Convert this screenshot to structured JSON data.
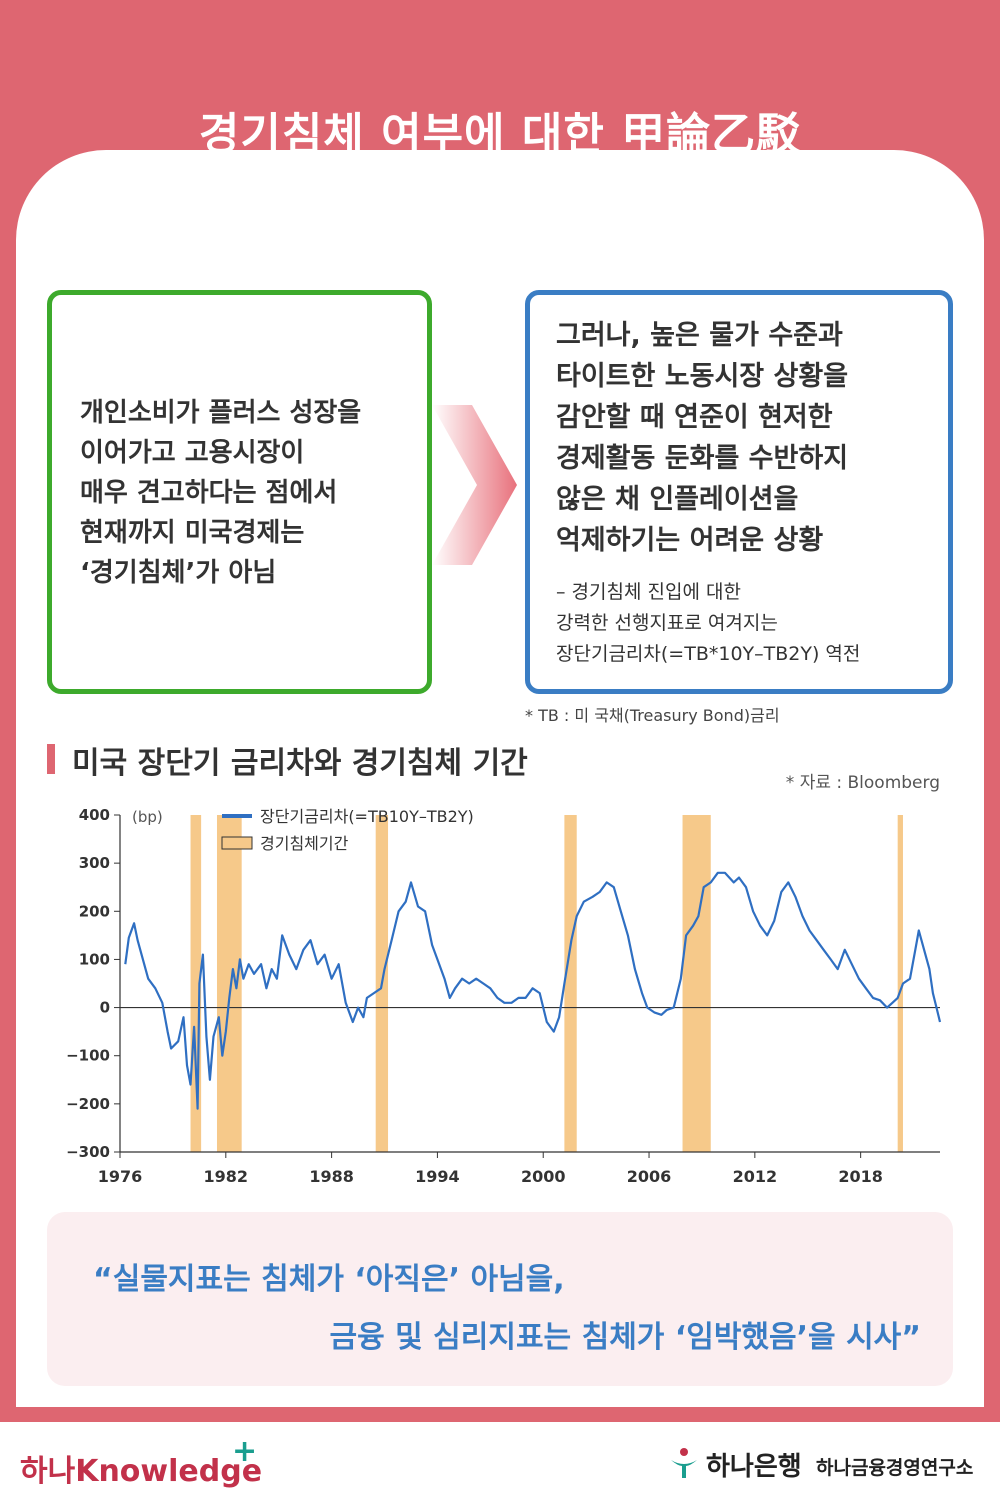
{
  "header": {
    "title": "경기침체 여부에 대한 甲論乙駁"
  },
  "left_box": {
    "text": "개인소비가 플러스 성장을\n이어가고 고용시장이\n매우 견고하다는 점에서\n현재까지 미국경제는\n‘경기침체’가 아님"
  },
  "right_box": {
    "text": "그러나, 높은 물가 수준과\n타이트한 노동시장 상황을\n감안할 때 연준이 현저한\n경제활동 둔화를 수반하지\n않은 채 인플레이션을\n억제하기는 어려운 상황",
    "note": "– 경기침체 진입에 대한\n   강력한 선행지표로 여겨지는\n   장단기금리차(=TB*10Y–TB2Y) 역전"
  },
  "tb_note": "* TB : 미 국채(Treasury Bond)금리",
  "section": {
    "title": "미국 장단기 금리차와 경기침체 기간",
    "source": "* 자료 : Bloomberg"
  },
  "colors": {
    "line": "#2f6fc2",
    "recession": "#f6c98a",
    "accent": "#de6671"
  },
  "chart_data": {
    "type": "line",
    "unit_label": "(bp)",
    "ylim": [
      -300,
      400
    ],
    "yticks": [
      "400",
      "300",
      "200",
      "100",
      "0",
      "−100",
      "−200",
      "−300"
    ],
    "xlim": [
      1976,
      2022.5
    ],
    "xticks": [
      "1976",
      "1982",
      "1988",
      "1994",
      "2000",
      "2006",
      "2012",
      "2018"
    ],
    "legend": {
      "line": "장단기금리차(=TB10Y–TB2Y)",
      "band": "경기침체기간"
    },
    "recessions": [
      [
        1980.0,
        1980.6
      ],
      [
        1981.5,
        1982.9
      ],
      [
        1990.5,
        1991.2
      ],
      [
        2001.2,
        2001.9
      ],
      [
        2007.9,
        2009.5
      ],
      [
        2020.1,
        2020.4
      ]
    ],
    "series": [
      {
        "name": "장단기금리차(=TB10Y–TB2Y)",
        "points": [
          [
            1976.3,
            90
          ],
          [
            1976.5,
            145
          ],
          [
            1976.8,
            175
          ],
          [
            1977.0,
            140
          ],
          [
            1977.3,
            100
          ],
          [
            1977.6,
            60
          ],
          [
            1978.0,
            40
          ],
          [
            1978.4,
            10
          ],
          [
            1978.7,
            -50
          ],
          [
            1978.9,
            -85
          ],
          [
            1979.3,
            -70
          ],
          [
            1979.6,
            -20
          ],
          [
            1979.8,
            -120
          ],
          [
            1980.0,
            -160
          ],
          [
            1980.2,
            -40
          ],
          [
            1980.4,
            -210
          ],
          [
            1980.5,
            50
          ],
          [
            1980.7,
            110
          ],
          [
            1980.9,
            -60
          ],
          [
            1981.1,
            -150
          ],
          [
            1981.3,
            -60
          ],
          [
            1981.6,
            -20
          ],
          [
            1981.8,
            -100
          ],
          [
            1982.0,
            -50
          ],
          [
            1982.2,
            20
          ],
          [
            1982.4,
            80
          ],
          [
            1982.6,
            40
          ],
          [
            1982.8,
            100
          ],
          [
            1983.0,
            60
          ],
          [
            1983.3,
            90
          ],
          [
            1983.6,
            70
          ],
          [
            1984.0,
            90
          ],
          [
            1984.3,
            40
          ],
          [
            1984.6,
            80
          ],
          [
            1984.9,
            60
          ],
          [
            1985.2,
            150
          ],
          [
            1985.6,
            110
          ],
          [
            1986.0,
            80
          ],
          [
            1986.4,
            120
          ],
          [
            1986.8,
            140
          ],
          [
            1987.2,
            90
          ],
          [
            1987.6,
            110
          ],
          [
            1988.0,
            60
          ],
          [
            1988.4,
            90
          ],
          [
            1988.8,
            10
          ],
          [
            1989.2,
            -30
          ],
          [
            1989.5,
            0
          ],
          [
            1989.8,
            -20
          ],
          [
            1990.0,
            20
          ],
          [
            1990.4,
            30
          ],
          [
            1990.8,
            40
          ],
          [
            1991.0,
            80
          ],
          [
            1991.4,
            140
          ],
          [
            1991.8,
            200
          ],
          [
            1992.2,
            220
          ],
          [
            1992.5,
            260
          ],
          [
            1992.9,
            210
          ],
          [
            1993.3,
            200
          ],
          [
            1993.7,
            130
          ],
          [
            1994.0,
            100
          ],
          [
            1994.4,
            60
          ],
          [
            1994.7,
            20
          ],
          [
            1995.0,
            40
          ],
          [
            1995.4,
            60
          ],
          [
            1995.8,
            50
          ],
          [
            1996.2,
            60
          ],
          [
            1996.6,
            50
          ],
          [
            1997.0,
            40
          ],
          [
            1997.4,
            20
          ],
          [
            1997.8,
            10
          ],
          [
            1998.2,
            10
          ],
          [
            1998.6,
            20
          ],
          [
            1999.0,
            20
          ],
          [
            1999.4,
            40
          ],
          [
            1999.8,
            30
          ],
          [
            2000.2,
            -30
          ],
          [
            2000.6,
            -50
          ],
          [
            2000.9,
            -20
          ],
          [
            2001.2,
            50
          ],
          [
            2001.6,
            140
          ],
          [
            2001.9,
            190
          ],
          [
            2002.3,
            220
          ],
          [
            2002.8,
            230
          ],
          [
            2003.2,
            240
          ],
          [
            2003.6,
            260
          ],
          [
            2004.0,
            250
          ],
          [
            2004.4,
            200
          ],
          [
            2004.8,
            150
          ],
          [
            2005.2,
            80
          ],
          [
            2005.6,
            30
          ],
          [
            2005.9,
            0
          ],
          [
            2006.3,
            -10
          ],
          [
            2006.7,
            -15
          ],
          [
            2007.0,
            -5
          ],
          [
            2007.4,
            0
          ],
          [
            2007.8,
            60
          ],
          [
            2008.1,
            150
          ],
          [
            2008.5,
            170
          ],
          [
            2008.8,
            190
          ],
          [
            2009.1,
            250
          ],
          [
            2009.5,
            260
          ],
          [
            2009.9,
            280
          ],
          [
            2010.3,
            280
          ],
          [
            2010.8,
            260
          ],
          [
            2011.1,
            270
          ],
          [
            2011.5,
            250
          ],
          [
            2011.9,
            200
          ],
          [
            2012.3,
            170
          ],
          [
            2012.7,
            150
          ],
          [
            2013.1,
            180
          ],
          [
            2013.5,
            240
          ],
          [
            2013.9,
            260
          ],
          [
            2014.3,
            230
          ],
          [
            2014.7,
            190
          ],
          [
            2015.1,
            160
          ],
          [
            2015.5,
            140
          ],
          [
            2015.9,
            120
          ],
          [
            2016.3,
            100
          ],
          [
            2016.7,
            80
          ],
          [
            2017.1,
            120
          ],
          [
            2017.5,
            90
          ],
          [
            2017.9,
            60
          ],
          [
            2018.3,
            40
          ],
          [
            2018.7,
            20
          ],
          [
            2019.1,
            15
          ],
          [
            2019.5,
            0
          ],
          [
            2019.8,
            10
          ],
          [
            2020.1,
            20
          ],
          [
            2020.4,
            50
          ],
          [
            2020.8,
            60
          ],
          [
            2021.1,
            120
          ],
          [
            2021.3,
            160
          ],
          [
            2021.6,
            120
          ],
          [
            2021.9,
            80
          ],
          [
            2022.1,
            30
          ],
          [
            2022.3,
            0
          ],
          [
            2022.5,
            -30
          ]
        ]
      }
    ]
  },
  "quote": {
    "line1": "“실물지표는 침체가 ‘아직은’ 아님을,",
    "line2": "금융 및 심리지표는 침체가 ‘임박했음’을 시사”"
  },
  "footer": {
    "logo_left": "하나Knowledge",
    "logo_plus": "+",
    "bank": "하나은행",
    "institute": "하나금융경영연구소"
  }
}
